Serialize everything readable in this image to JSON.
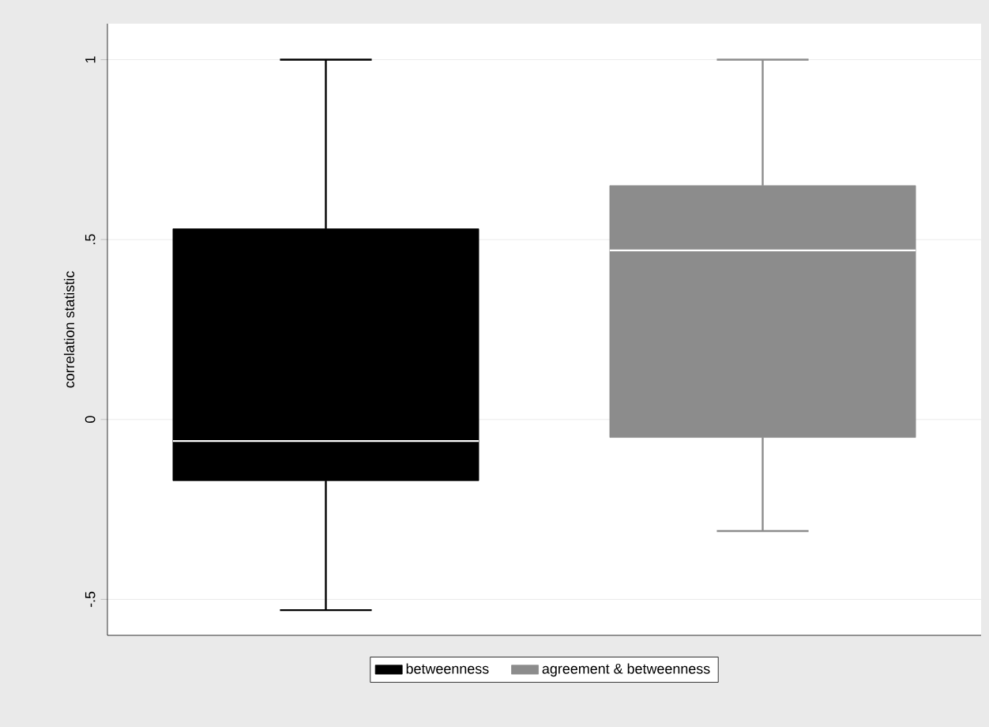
{
  "chart_data": {
    "type": "box",
    "ylabel": "correlation statistic",
    "categories": [
      null
    ],
    "ylim": [
      -0.6,
      1.1
    ],
    "yticks": [
      {
        "value": -0.5,
        "label": "-.5"
      },
      0,
      {
        "value": 0.5,
        "label": ".5"
      },
      1
    ],
    "grid": "y",
    "legend": "bottom",
    "tick_labels": "y",
    "series": [
      {
        "name": "betweenness",
        "color": "#000000",
        "boxes": [
          {
            "low": -0.53,
            "q1": -0.17,
            "median": -0.06,
            "q3": 0.53,
            "high": 1
          }
        ]
      },
      {
        "name": "agreement & betweenness",
        "color": "#8c8c8c",
        "boxes": [
          {
            "low": -0.31,
            "q1": -0.05,
            "median": 0.47,
            "q3": 0.65,
            "high": 1
          }
        ]
      }
    ]
  }
}
